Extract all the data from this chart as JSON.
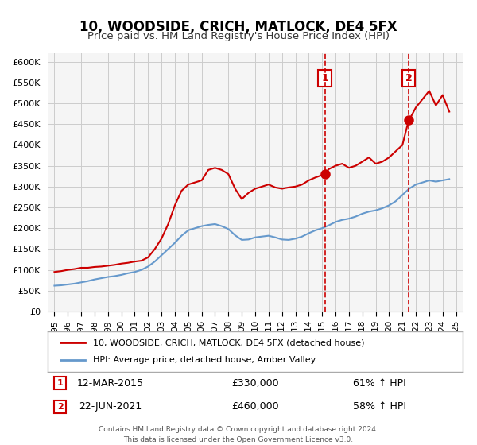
{
  "title": "10, WOODSIDE, CRICH, MATLOCK, DE4 5FX",
  "subtitle": "Price paid vs. HM Land Registry's House Price Index (HPI)",
  "legend_label_red": "10, WOODSIDE, CRICH, MATLOCK, DE4 5FX (detached house)",
  "legend_label_blue": "HPI: Average price, detached house, Amber Valley",
  "marker1_label": "1",
  "marker1_date": "12-MAR-2015",
  "marker1_price": "£330,000",
  "marker1_pct": "61% ↑ HPI",
  "marker1_year": 2015.2,
  "marker1_value": 330000,
  "marker2_label": "2",
  "marker2_date": "22-JUN-2021",
  "marker2_price": "£460,000",
  "marker2_pct": "58% ↑ HPI",
  "marker2_year": 2021.47,
  "marker2_value": 460000,
  "red_color": "#cc0000",
  "blue_color": "#6699cc",
  "grid_color": "#cccccc",
  "bg_color": "#f5f5f5",
  "vline_color": "#cc0000",
  "marker_box_color": "#cc0000",
  "ylim": [
    0,
    620000
  ],
  "xlim": [
    1994.5,
    2025.5
  ],
  "yticks": [
    0,
    50000,
    100000,
    150000,
    200000,
    250000,
    300000,
    350000,
    400000,
    450000,
    500000,
    550000,
    600000
  ],
  "ytick_labels": [
    "£0",
    "£50K",
    "£100K",
    "£150K",
    "£200K",
    "£250K",
    "£300K",
    "£350K",
    "£400K",
    "£450K",
    "£500K",
    "£550K",
    "£600K"
  ],
  "xticks": [
    1995,
    1996,
    1997,
    1998,
    1999,
    2000,
    2001,
    2002,
    2003,
    2004,
    2005,
    2006,
    2007,
    2008,
    2009,
    2010,
    2011,
    2012,
    2013,
    2014,
    2015,
    2016,
    2017,
    2018,
    2019,
    2020,
    2021,
    2022,
    2023,
    2024,
    2025
  ],
  "footer1": "Contains HM Land Registry data © Crown copyright and database right 2024.",
  "footer2": "This data is licensed under the Open Government Licence v3.0.",
  "red_x": [
    1995.0,
    1995.5,
    1996.0,
    1996.5,
    1997.0,
    1997.5,
    1998.0,
    1998.5,
    1999.0,
    1999.5,
    2000.0,
    2000.5,
    2001.0,
    2001.5,
    2002.0,
    2002.5,
    2003.0,
    2003.5,
    2004.0,
    2004.5,
    2005.0,
    2005.5,
    2006.0,
    2006.5,
    2007.0,
    2007.5,
    2008.0,
    2008.5,
    2009.0,
    2009.5,
    2010.0,
    2010.5,
    2011.0,
    2011.5,
    2012.0,
    2012.5,
    2013.0,
    2013.5,
    2014.0,
    2014.5,
    2015.2,
    2015.5,
    2016.0,
    2016.5,
    2017.0,
    2017.5,
    2018.0,
    2018.5,
    2019.0,
    2019.5,
    2020.0,
    2020.5,
    2021.0,
    2021.47,
    2021.5,
    2022.0,
    2022.5,
    2023.0,
    2023.5,
    2024.0,
    2024.5
  ],
  "red_y": [
    95000,
    97000,
    100000,
    102000,
    105000,
    105000,
    107000,
    108000,
    110000,
    112000,
    115000,
    117000,
    120000,
    122000,
    130000,
    150000,
    175000,
    210000,
    255000,
    290000,
    305000,
    310000,
    315000,
    340000,
    345000,
    340000,
    330000,
    295000,
    270000,
    285000,
    295000,
    300000,
    305000,
    298000,
    295000,
    298000,
    300000,
    305000,
    315000,
    322000,
    330000,
    342000,
    350000,
    355000,
    345000,
    350000,
    360000,
    370000,
    355000,
    360000,
    370000,
    385000,
    400000,
    460000,
    460000,
    490000,
    510000,
    530000,
    495000,
    520000,
    480000
  ],
  "blue_x": [
    1995.0,
    1995.5,
    1996.0,
    1996.5,
    1997.0,
    1997.5,
    1998.0,
    1998.5,
    1999.0,
    1999.5,
    2000.0,
    2000.5,
    2001.0,
    2001.5,
    2002.0,
    2002.5,
    2003.0,
    2003.5,
    2004.0,
    2004.5,
    2005.0,
    2005.5,
    2006.0,
    2006.5,
    2007.0,
    2007.5,
    2008.0,
    2008.5,
    2009.0,
    2009.5,
    2010.0,
    2010.5,
    2011.0,
    2011.5,
    2012.0,
    2012.5,
    2013.0,
    2013.5,
    2014.0,
    2014.5,
    2015.0,
    2015.5,
    2016.0,
    2016.5,
    2017.0,
    2017.5,
    2018.0,
    2018.5,
    2019.0,
    2019.5,
    2020.0,
    2020.5,
    2021.0,
    2021.5,
    2022.0,
    2022.5,
    2023.0,
    2023.5,
    2024.0,
    2024.5
  ],
  "blue_y": [
    62000,
    63000,
    65000,
    67000,
    70000,
    73000,
    77000,
    80000,
    83000,
    85000,
    88000,
    92000,
    95000,
    100000,
    108000,
    120000,
    135000,
    150000,
    165000,
    182000,
    195000,
    200000,
    205000,
    208000,
    210000,
    205000,
    198000,
    183000,
    172000,
    173000,
    178000,
    180000,
    182000,
    178000,
    173000,
    172000,
    175000,
    180000,
    188000,
    195000,
    200000,
    207000,
    215000,
    220000,
    223000,
    228000,
    235000,
    240000,
    243000,
    248000,
    255000,
    265000,
    280000,
    295000,
    305000,
    310000,
    315000,
    312000,
    315000,
    318000
  ]
}
